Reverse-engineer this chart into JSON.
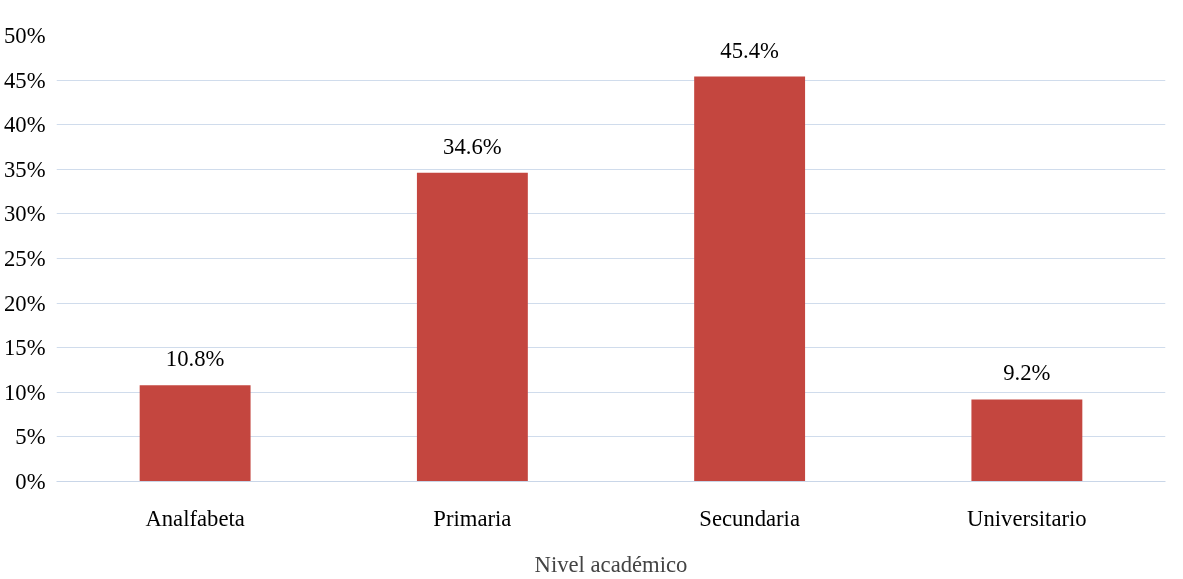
{
  "chart_data": {
    "type": "bar",
    "xlabel": "Nivel académico",
    "categories": [
      "Analfabeta",
      "Primaria",
      "Secundaria",
      "Universitario"
    ],
    "values": [
      10.8,
      34.6,
      45.4,
      9.2
    ],
    "value_labels": [
      "10.8%",
      "34.6%",
      "45.4%",
      "9.2%"
    ],
    "color": "#c4463f",
    "ylim": [
      0,
      50
    ],
    "yticks": [
      {
        "value": 0,
        "label": "0%"
      },
      {
        "value": 5,
        "label": "5%"
      },
      {
        "value": 10,
        "label": "10%"
      },
      {
        "value": 15,
        "label": "15%"
      },
      {
        "value": 20,
        "label": "20%"
      },
      {
        "value": 25,
        "label": "25%"
      },
      {
        "value": 30,
        "label": "30%"
      },
      {
        "value": 35,
        "label": "35%"
      },
      {
        "value": 40,
        "label": "40%"
      },
      {
        "value": 45,
        "label": "45%"
      },
      {
        "value": 50,
        "label": "50%"
      }
    ],
    "grid": "y"
  }
}
